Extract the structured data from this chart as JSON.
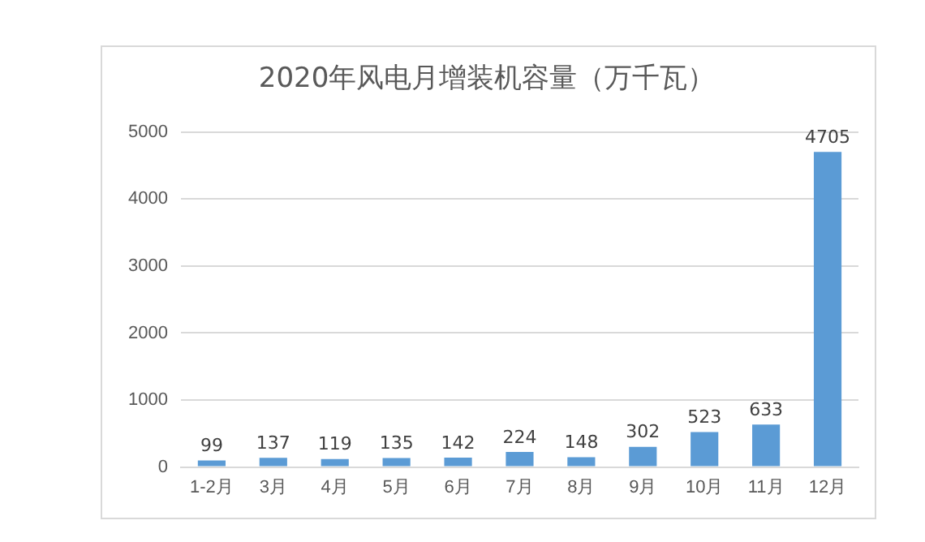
{
  "chart_data": {
    "type": "bar",
    "title": "2020年风电月增装机容量（万千瓦）",
    "categories": [
      "1-2月",
      "3月",
      "4月",
      "5月",
      "6月",
      "7月",
      "8月",
      "9月",
      "10月",
      "11月",
      "12月"
    ],
    "values": [
      99,
      137,
      119,
      135,
      142,
      224,
      148,
      302,
      523,
      633,
      4705
    ],
    "color": "#5b9bd5",
    "ylim": [
      0,
      5000
    ],
    "yticks": [
      0,
      1000,
      2000,
      3000,
      4000,
      5000
    ],
    "grid": "y",
    "data_labels": true,
    "legend": false
  }
}
